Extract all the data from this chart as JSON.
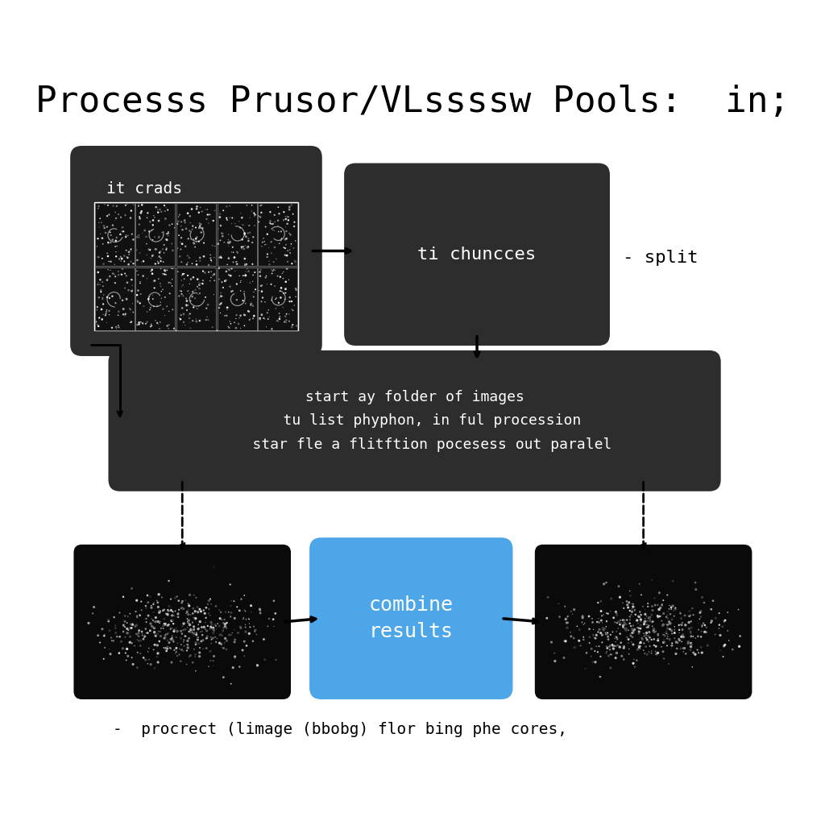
{
  "title": "Processs Prusor/VLssssw Pools:  in;",
  "title_fontsize": 32,
  "title_font": "DejaVu Sans",
  "bg_color": "#ffffff",
  "box_dark": "#2d2d2d",
  "box_blue": "#4da6e8",
  "text_white": "#ffffff",
  "text_black": "#000000",
  "box1_label": "it crads",
  "box2_label": "ti chuncces",
  "box3_label": "start ay folder of images\n    tu list phyphon, in ful procession\n    star fle a flitftion pocesess out paralel",
  "box_combine": "combine\nresults",
  "annotation_right": "- split",
  "annotation_bottom": "-  procrect (limage (bbobg) flor bing phe cores,",
  "grid_rows": 2,
  "grid_cols": 5
}
